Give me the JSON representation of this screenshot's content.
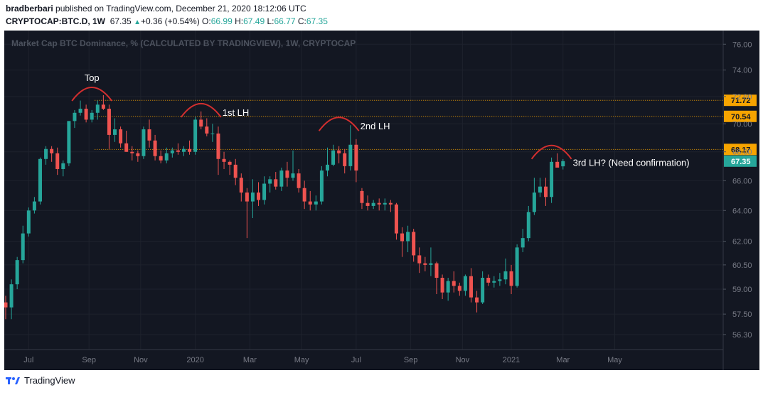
{
  "header": {
    "author": "bradberbari",
    "published": "published on TradingView.com, December 21, 2020 18:12:06 UTC",
    "symbol": "CRYPTOCAP:BTC.D, 1W",
    "last": "67.35",
    "change": "+0.36 (+0.54%)",
    "o_label": "O:",
    "o": "66.99",
    "h_label": "H:",
    "h": "67.49",
    "l_label": "L:",
    "l": "66.77",
    "c_label": "C:",
    "c": "67.35"
  },
  "footer": {
    "brand": "TradingView"
  },
  "colors": {
    "background": "#131722",
    "up": "#26a69a",
    "down": "#ef5350",
    "level": "#f7a400",
    "arc": "#d32f2f",
    "price": "#26a69a"
  },
  "chart_data": {
    "type": "candlestick",
    "title": "Market Cap BTC Dominance, % (CALCULATED BY TRADINGVIEW), 1W, CRYPTOCAP",
    "xlabel": "",
    "ylabel": "",
    "x_ticks": [
      "Jul",
      "Sep",
      "Nov",
      "2020",
      "Mar",
      "May",
      "Jul",
      "Sep",
      "Nov",
      "2021",
      "Mar",
      "May"
    ],
    "y_ticks": [
      "76.00",
      "74.00",
      "72.00",
      "70.00",
      "68.00",
      "66.00",
      "64.00",
      "62.00",
      "60.50",
      "59.00",
      "57.50",
      "56.30"
    ],
    "y_scale": "log",
    "ylim": [
      55.8,
      76.8
    ],
    "levels": [
      {
        "label": "71.72",
        "value": 71.72
      },
      {
        "label": "70.54",
        "value": 70.54
      },
      {
        "label": "68.17",
        "value": 68.17
      }
    ],
    "current_price": {
      "label": "67.35",
      "value": 67.35
    },
    "annotations": [
      {
        "text": "Top",
        "candle": 15
      },
      {
        "text": "1st LH",
        "candle": 34
      },
      {
        "text": "2nd LH",
        "candle": 58
      },
      {
        "text": "3rd LH? (Need confirmation)",
        "candle": 95
      }
    ],
    "candles": [
      [
        58.2,
        58.6,
        57.2,
        57.9
      ],
      [
        57.9,
        59.6,
        57.2,
        59.3
      ],
      [
        59.3,
        61.0,
        59.0,
        60.8
      ],
      [
        60.8,
        63.0,
        60.6,
        62.5
      ],
      [
        62.5,
        64.2,
        62.3,
        64.0
      ],
      [
        64.0,
        64.9,
        63.8,
        64.6
      ],
      [
        64.6,
        67.6,
        64.4,
        67.5
      ],
      [
        67.5,
        68.4,
        67.1,
        68.2
      ],
      [
        68.2,
        68.4,
        67.3,
        67.9
      ],
      [
        67.9,
        68.3,
        66.4,
        66.8
      ],
      [
        66.8,
        67.4,
        66.3,
        67.2
      ],
      [
        67.2,
        70.2,
        67.0,
        70.2
      ],
      [
        70.2,
        71.0,
        69.7,
        70.8
      ],
      [
        70.8,
        71.7,
        70.6,
        71.1
      ],
      [
        71.1,
        71.4,
        70.1,
        70.3
      ],
      [
        70.3,
        71.0,
        70.1,
        70.8
      ],
      [
        70.8,
        71.7,
        70.3,
        71.4
      ],
      [
        71.4,
        72.1,
        71.0,
        71.1
      ],
      [
        71.1,
        71.4,
        68.2,
        69.2
      ],
      [
        69.2,
        70.4,
        68.7,
        69.6
      ],
      [
        69.6,
        69.8,
        68.3,
        68.6
      ],
      [
        68.6,
        69.5,
        68.0,
        68.0
      ],
      [
        68.0,
        68.4,
        67.4,
        67.9
      ],
      [
        67.9,
        68.1,
        67.3,
        67.7
      ],
      [
        67.7,
        69.8,
        67.5,
        69.6
      ],
      [
        69.6,
        70.3,
        68.3,
        68.8
      ],
      [
        68.8,
        69.2,
        67.4,
        67.7
      ],
      [
        67.7,
        68.1,
        67.2,
        67.4
      ],
      [
        67.4,
        68.3,
        67.2,
        67.9
      ],
      [
        67.9,
        68.3,
        67.6,
        68.1
      ],
      [
        68.1,
        68.6,
        67.8,
        68.0
      ],
      [
        68.0,
        68.4,
        67.7,
        68.2
      ],
      [
        68.2,
        68.8,
        67.8,
        68.0
      ],
      [
        68.0,
        70.5,
        67.8,
        70.3
      ],
      [
        70.3,
        70.9,
        69.6,
        69.8
      ],
      [
        69.8,
        70.4,
        69.1,
        69.3
      ],
      [
        69.3,
        70.0,
        68.7,
        69.3
      ],
      [
        69.3,
        69.8,
        66.4,
        67.5
      ],
      [
        67.5,
        68.0,
        66.8,
        67.3
      ],
      [
        67.3,
        67.4,
        66.4,
        67.1
      ],
      [
        67.1,
        67.5,
        65.7,
        66.2
      ],
      [
        66.2,
        66.5,
        64.6,
        65.2
      ],
      [
        65.2,
        65.5,
        62.2,
        64.6
      ],
      [
        64.6,
        66.1,
        63.5,
        65.2
      ],
      [
        65.2,
        65.9,
        64.3,
        64.7
      ],
      [
        64.7,
        66.3,
        64.4,
        65.8
      ],
      [
        65.8,
        66.3,
        65.2,
        66.1
      ],
      [
        66.1,
        66.6,
        65.4,
        65.6
      ],
      [
        65.6,
        66.9,
        65.3,
        66.7
      ],
      [
        66.7,
        67.3,
        65.6,
        66.2
      ],
      [
        66.2,
        68.1,
        66.0,
        66.5
      ],
      [
        66.5,
        66.8,
        65.2,
        65.5
      ],
      [
        65.5,
        66.0,
        64.1,
        64.6
      ],
      [
        64.6,
        65.3,
        64.0,
        64.4
      ],
      [
        64.4,
        65.0,
        64.0,
        64.6
      ],
      [
        64.6,
        67.0,
        64.4,
        66.7
      ],
      [
        66.7,
        68.3,
        66.3,
        67.1
      ],
      [
        67.1,
        68.5,
        67.0,
        68.1
      ],
      [
        68.1,
        68.4,
        67.2,
        67.9
      ],
      [
        67.9,
        68.2,
        66.5,
        67.0
      ],
      [
        67.0,
        69.9,
        66.7,
        68.5
      ],
      [
        68.5,
        68.9,
        65.9,
        66.7
      ],
      [
        65.3,
        65.5,
        64.1,
        64.5
      ],
      [
        64.5,
        65.0,
        64.0,
        64.3
      ],
      [
        64.3,
        64.7,
        64.1,
        64.5
      ],
      [
        64.5,
        64.8,
        64.0,
        64.4
      ],
      [
        64.4,
        64.8,
        64.0,
        64.5
      ],
      [
        64.5,
        64.7,
        63.9,
        64.4
      ],
      [
        64.4,
        64.5,
        62.1,
        62.5
      ],
      [
        62.5,
        62.9,
        61.0,
        62.0
      ],
      [
        62.0,
        63.0,
        61.3,
        62.6
      ],
      [
        62.6,
        62.8,
        60.7,
        61.1
      ],
      [
        61.1,
        61.6,
        60.0,
        60.6
      ],
      [
        60.6,
        61.0,
        60.1,
        60.5
      ],
      [
        60.5,
        61.6,
        59.8,
        60.6
      ],
      [
        60.6,
        60.7,
        58.7,
        59.7
      ],
      [
        59.7,
        59.9,
        58.4,
        58.8
      ],
      [
        58.8,
        59.7,
        58.3,
        59.5
      ],
      [
        59.5,
        60.1,
        58.8,
        59.2
      ],
      [
        59.2,
        59.4,
        58.6,
        58.9
      ],
      [
        58.9,
        59.9,
        58.6,
        59.8
      ],
      [
        59.8,
        60.3,
        58.2,
        58.5
      ],
      [
        58.5,
        58.9,
        57.6,
        58.2
      ],
      [
        58.2,
        60.1,
        58.1,
        59.7
      ],
      [
        59.7,
        59.9,
        59.2,
        59.4
      ],
      [
        59.4,
        59.8,
        59.1,
        59.5
      ],
      [
        59.5,
        60.0,
        59.2,
        59.6
      ],
      [
        59.6,
        60.9,
        59.3,
        60.1
      ],
      [
        60.1,
        60.5,
        58.7,
        59.2
      ],
      [
        59.2,
        61.8,
        59.1,
        61.6
      ],
      [
        61.6,
        62.8,
        61.3,
        62.2
      ],
      [
        62.2,
        64.3,
        62.0,
        63.9
      ],
      [
        63.9,
        66.2,
        63.7,
        65.2
      ],
      [
        65.2,
        66.2,
        64.9,
        65.6
      ],
      [
        65.6,
        66.2,
        64.3,
        64.9
      ],
      [
        64.9,
        67.6,
        64.5,
        67.3
      ],
      [
        67.3,
        67.9,
        67.0,
        66.9
      ],
      [
        66.99,
        67.49,
        66.77,
        67.35
      ]
    ]
  }
}
